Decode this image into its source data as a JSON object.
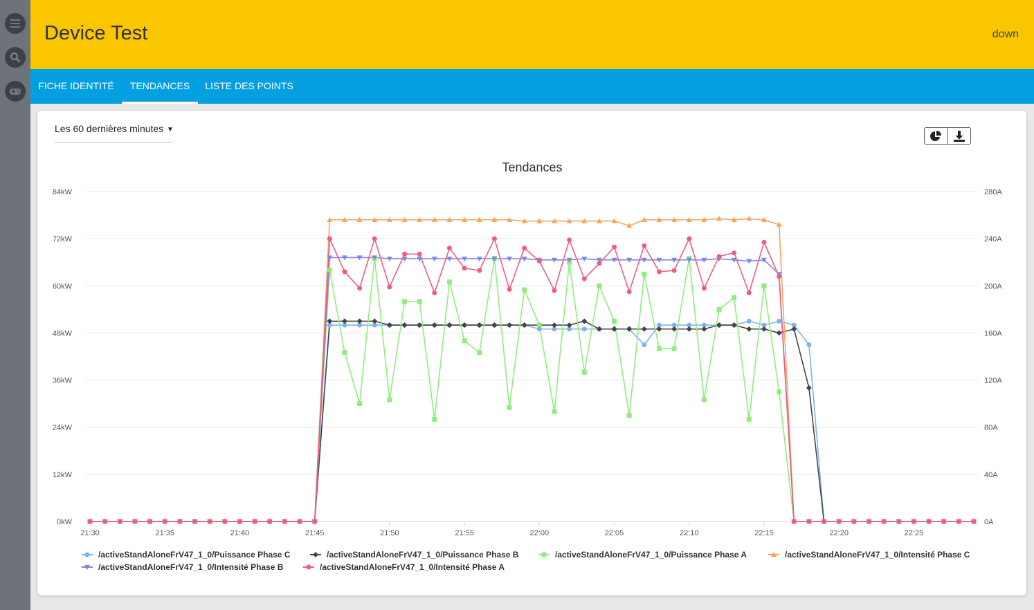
{
  "header": {
    "title": "Device Test",
    "status": "down"
  },
  "sidebar": {
    "icons": [
      "list-icon",
      "search-icon",
      "gamepad-icon"
    ]
  },
  "tabs": [
    {
      "label": "FICHE IDENTITÉ",
      "active": false
    },
    {
      "label": "TENDANCES",
      "active": true
    },
    {
      "label": "LISTE DES POINTS",
      "active": false
    }
  ],
  "period": {
    "selected": "Les 60 dernières minutes"
  },
  "toolbar": {
    "icons": [
      "pie-chart-icon",
      "download-icon"
    ]
  },
  "chart_data": {
    "type": "line",
    "title": "Tendances",
    "xlabel": "",
    "x_ticks": [
      "21:30",
      "21:35",
      "21:40",
      "21:45",
      "21:50",
      "21:55",
      "22:00",
      "22:05",
      "22:10",
      "22:15",
      "22:20",
      "22:25"
    ],
    "x_range_minutes": [
      0,
      59
    ],
    "y_left": {
      "label": "kW",
      "ticks": [
        "0kW",
        "12kW",
        "24kW",
        "36kW",
        "48kW",
        "60kW",
        "72kW",
        "84kW"
      ],
      "range": [
        0,
        84
      ]
    },
    "y_right": {
      "label": "A",
      "ticks": [
        "0A",
        "40A",
        "80A",
        "120A",
        "160A",
        "200A",
        "240A",
        "280A"
      ],
      "range": [
        0,
        280
      ]
    },
    "x_minutes": [
      0,
      1,
      2,
      3,
      4,
      5,
      6,
      7,
      8,
      9,
      10,
      11,
      12,
      13,
      14,
      15,
      16,
      17,
      18,
      19,
      20,
      21,
      22,
      23,
      24,
      25,
      26,
      27,
      28,
      29,
      30,
      31,
      32,
      33,
      34,
      35,
      36,
      37,
      38,
      39,
      40,
      41,
      42,
      43,
      44,
      45,
      46,
      47,
      48,
      49,
      50,
      51,
      52,
      53,
      54,
      55,
      56,
      57,
      58,
      59
    ],
    "series": [
      {
        "name": "/activeStandAloneFrV47_1_0/Puissance Phase C",
        "axis": "left",
        "color": "#7cb5ec",
        "marker": "circle",
        "values": [
          0,
          0,
          0,
          0,
          0,
          0,
          0,
          0,
          0,
          0,
          0,
          0,
          0,
          0,
          0,
          0,
          50,
          50,
          50,
          50,
          50,
          50,
          50,
          50,
          50,
          50,
          50,
          50,
          50,
          50,
          49,
          49,
          49,
          49,
          49,
          49,
          49,
          45,
          50,
          50,
          50,
          50,
          50,
          50,
          51,
          50,
          51,
          50,
          45,
          0,
          0,
          0,
          0,
          0,
          0,
          0,
          0,
          0,
          0,
          0
        ]
      },
      {
        "name": "/activeStandAloneFrV47_1_0/Puissance Phase B",
        "axis": "left",
        "color": "#434348",
        "marker": "diamond",
        "values": [
          0,
          0,
          0,
          0,
          0,
          0,
          0,
          0,
          0,
          0,
          0,
          0,
          0,
          0,
          0,
          0,
          51,
          51,
          51,
          51,
          50,
          50,
          50,
          50,
          50,
          50,
          50,
          50,
          50,
          50,
          50,
          50,
          50,
          51,
          49,
          49,
          49,
          49,
          49,
          49,
          49,
          49,
          50,
          50,
          49,
          49,
          48,
          49,
          34,
          0,
          0,
          0,
          0,
          0,
          0,
          0,
          0,
          0,
          0,
          0
        ]
      },
      {
        "name": "/activeStandAloneFrV47_1_0/Puissance Phase A",
        "axis": "left",
        "color": "#90ed7d",
        "marker": "square",
        "values": [
          0,
          0,
          0,
          0,
          0,
          0,
          0,
          0,
          0,
          0,
          0,
          0,
          0,
          0,
          0,
          0,
          64,
          43,
          30,
          67,
          31,
          56,
          56,
          26,
          61,
          46,
          43,
          67,
          29,
          59,
          50,
          28,
          66,
          38,
          60,
          51,
          27,
          63,
          44,
          44,
          67,
          31,
          54,
          57,
          26,
          60,
          33,
          0,
          0,
          0,
          0,
          0,
          0,
          0,
          0,
          0,
          0,
          0,
          0,
          0
        ]
      },
      {
        "name": "/activeStandAloneFrV47_1_0/Intensité Phase C",
        "axis": "right",
        "color": "#f7a35c",
        "marker": "triangle",
        "values": [
          0,
          0,
          0,
          0,
          0,
          0,
          0,
          0,
          0,
          0,
          0,
          0,
          0,
          0,
          0,
          0,
          256,
          256,
          256,
          256,
          256,
          256,
          256,
          256,
          256,
          256,
          256,
          256,
          256,
          255,
          255,
          255,
          255,
          255,
          255,
          255,
          251,
          256,
          256,
          256,
          256,
          256,
          257,
          256,
          257,
          256,
          252,
          0,
          0,
          0,
          0,
          0,
          0,
          0,
          0,
          0,
          0,
          0,
          0,
          0
        ]
      },
      {
        "name": "/activeStandAloneFrV47_1_0/Intensité Phase B",
        "axis": "right",
        "color": "#8085e9",
        "marker": "triangle-down",
        "values": [
          0,
          0,
          0,
          0,
          0,
          0,
          0,
          0,
          0,
          0,
          0,
          0,
          0,
          0,
          0,
          0,
          224,
          224,
          224,
          224,
          223,
          223,
          223,
          223,
          223,
          223,
          223,
          223,
          223,
          223,
          222,
          222,
          222,
          223,
          222,
          222,
          222,
          222,
          222,
          222,
          222,
          222,
          223,
          222,
          221,
          222,
          210,
          0,
          0,
          0,
          0,
          0,
          0,
          0,
          0,
          0,
          0,
          0,
          0,
          0
        ]
      },
      {
        "name": "/activeStandAloneFrV47_1_0/Intensité Phase A",
        "axis": "right",
        "color": "#f15c80",
        "marker": "circle",
        "values": [
          0,
          0,
          0,
          0,
          0,
          0,
          0,
          0,
          0,
          0,
          0,
          0,
          0,
          0,
          0,
          0,
          240,
          212,
          198,
          240,
          199,
          227,
          227,
          194,
          232,
          215,
          213,
          240,
          197,
          232,
          221,
          196,
          239,
          206,
          219,
          233,
          195,
          234,
          212,
          213,
          240,
          198,
          225,
          228,
          194,
          237,
          208,
          0,
          0,
          0,
          0,
          0,
          0,
          0,
          0,
          0,
          0,
          0,
          0,
          0
        ]
      }
    ]
  }
}
